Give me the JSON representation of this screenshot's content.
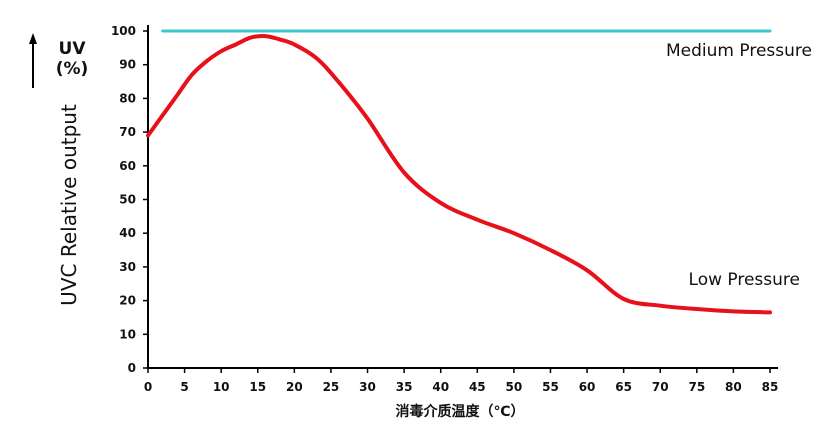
{
  "chart_data": {
    "type": "line",
    "title": "",
    "xlabel": "消毒介质温度（℃）",
    "ylabel": "UVC   Relative output",
    "yunit": "UV\n(%)",
    "xlim": [
      0,
      85
    ],
    "ylim": [
      0,
      100
    ],
    "x_ticks": [
      0,
      5,
      10,
      15,
      20,
      25,
      30,
      35,
      40,
      45,
      50,
      55,
      60,
      65,
      70,
      75,
      80,
      85
    ],
    "y_ticks": [
      0,
      10,
      20,
      30,
      40,
      50,
      60,
      70,
      80,
      90,
      100
    ],
    "grid": false,
    "series": [
      {
        "name": "Medium Pressure",
        "color": "#3cc8c8",
        "x": [
          2,
          85
        ],
        "values": [
          100,
          100
        ]
      },
      {
        "name": "Low Pressure",
        "color": "#e8101a",
        "x": [
          0,
          2,
          4,
          6,
          8,
          10,
          12,
          14,
          16,
          18,
          20,
          23,
          26,
          30,
          35,
          40,
          45,
          50,
          55,
          60,
          65,
          70,
          75,
          80,
          85
        ],
        "values": [
          69,
          75,
          81,
          87,
          91,
          94,
          96,
          98,
          98.5,
          97.5,
          96,
          92,
          85,
          74,
          58,
          49,
          44,
          40,
          35,
          29,
          20.5,
          18.5,
          17.5,
          16.8,
          16.5
        ]
      }
    ]
  }
}
